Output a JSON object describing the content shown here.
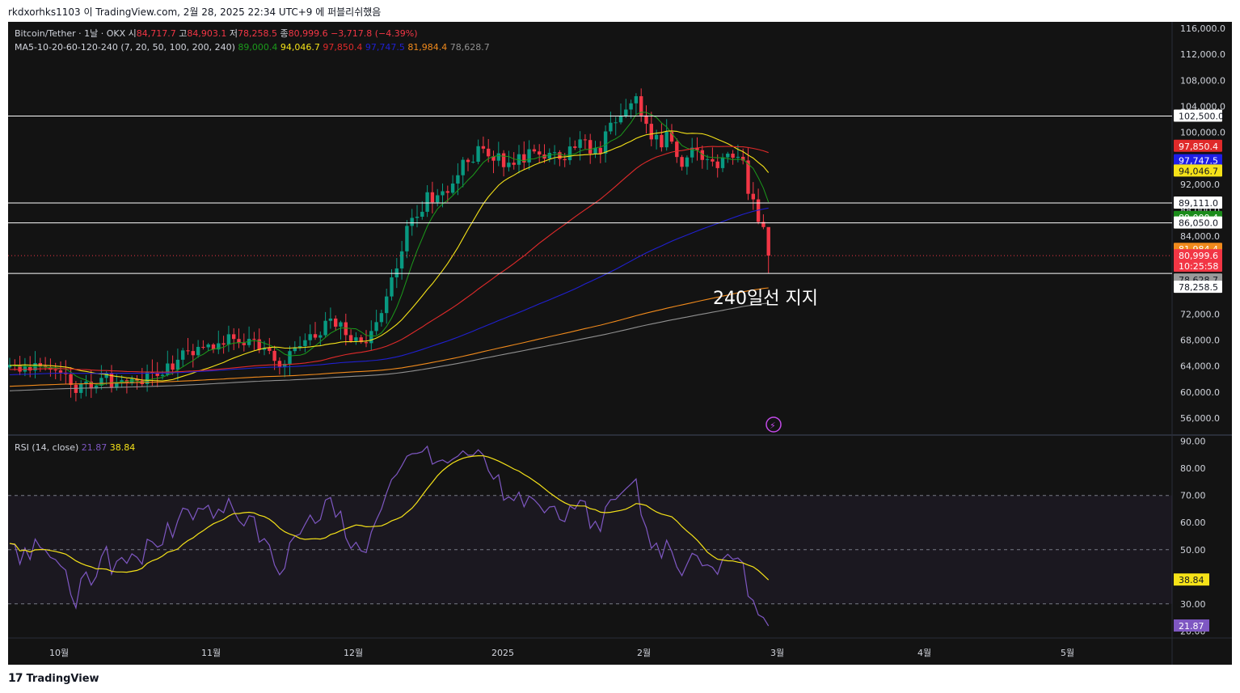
{
  "header": {
    "text": "rkdxorhks1103 이 TradingView.com, 2월 28, 2025 22:34 UTC+9 에 퍼블리쉬했음"
  },
  "footer": {
    "brand": "TradingView",
    "logo": "17"
  },
  "chart_data": {
    "type": "candlestick",
    "symbol_line": {
      "symbol": "Bitcoin/Tether · 1날 · OKX",
      "o_label": "시",
      "o": "84,717.7",
      "h_label": "고",
      "h": "84,903.1",
      "l_label": "저",
      "l": "78,258.5",
      "c_label": "종",
      "c": "80,999.6",
      "change": "−3,717.8 (−4.39%)"
    },
    "ma_legend": {
      "label": "MA5-10-20-60-120-240 (7, 20, 50, 100, 200, 240)",
      "values": [
        {
          "value": "89,000.4",
          "color": "#1b9a1b"
        },
        {
          "value": "94,046.7",
          "color": "#f5e218"
        },
        {
          "value": "97,850.4",
          "color": "#e02a2a"
        },
        {
          "value": "97,747.5",
          "color": "#2020d0"
        },
        {
          "value": "81,984.4",
          "color": "#f08a1c"
        },
        {
          "value": "78,628.7",
          "color": "#909090"
        }
      ]
    },
    "price_axis": {
      "ticks": [
        "116,000.0",
        "112,000.0",
        "108,000.0",
        "104,000.0",
        "100,000.0",
        "96,000.0",
        "92,000.0",
        "88,000.0",
        "84,000.0",
        "80,000.0",
        "76,000.0",
        "72,000.0",
        "68,000.0",
        "64,000.0",
        "60,000.0",
        "56,000.0"
      ],
      "range": [
        53500,
        117000
      ]
    },
    "price_labels": [
      {
        "value": 102500,
        "text": "102,500.0",
        "bg": "#ffffff",
        "fg": "#131722"
      },
      {
        "value": 97850.4,
        "text": "97,850.4",
        "bg": "#e02a2a",
        "fg": "#ffffff"
      },
      {
        "value": 97747.5,
        "text": "97,747.5",
        "bg": "#1e1ee6",
        "fg": "#ffffff",
        "offset": 17
      },
      {
        "value": 94046.7,
        "text": "94,046.7",
        "bg": "#f5e218",
        "fg": "#131722"
      },
      {
        "value": 89111.0,
        "text": "89,111.0",
        "bg": "#ffffff",
        "fg": "#131722"
      },
      {
        "value": 89000.4,
        "text": "89,000.4",
        "bg": "#1b8c1b",
        "fg": "#ffffff",
        "offset": 17
      },
      {
        "value": 86050.0,
        "text": "86,050.0",
        "bg": "#ffffff",
        "fg": "#131722"
      },
      {
        "value": 81984.4,
        "text": "81,984.4",
        "bg": "#f08a1c",
        "fg": "#ffffff"
      },
      {
        "value": 80999.6,
        "text": "80,999.6",
        "bg": "#f23645",
        "fg": "#ffffff",
        "sub": "10:25:58"
      },
      {
        "value": 78628.7,
        "text": "78,628.7",
        "bg": "#9a9a9a",
        "fg": "#131722",
        "offset": 11
      },
      {
        "value": 78258.5,
        "text": "78,258.5",
        "bg": "#ffffff",
        "fg": "#131722",
        "offset": 17
      }
    ],
    "horizontal_levels": [
      102500,
      89111,
      86050,
      78258.5
    ],
    "annotation": "240일선 지지",
    "time_axis": [
      "10월",
      "11월",
      "12월",
      "2025",
      "2월",
      "3월",
      "4월",
      "5월"
    ],
    "rsi": {
      "label": "RSI (14, close)",
      "value": "21.87",
      "ma_value": "38.84",
      "ticks": [
        "90.00",
        "80.00",
        "70.00",
        "60.00",
        "50.00",
        "40.00",
        "30.00",
        "20.00"
      ],
      "range": [
        18,
        92
      ],
      "bands": [
        70,
        50,
        30
      ],
      "rsi_color": "#7e57c2",
      "ma_color": "#f5e218"
    },
    "colors": {
      "up": "#089981",
      "down": "#f23645"
    }
  }
}
